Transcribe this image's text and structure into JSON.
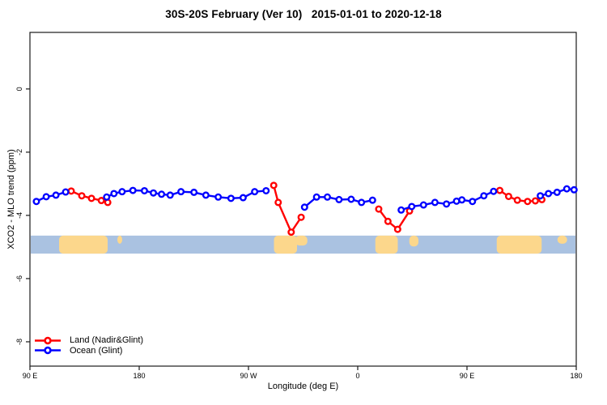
{
  "window": {
    "title": "30S-20S February (Ver 10)   2015-01-01 to 2020-12-18"
  },
  "chart_data": {
    "type": "line",
    "title": "30S-20S February (Ver 10)   2015-01-01 to 2020-12-18",
    "xlabel": "Longitude (deg E)",
    "ylabel": "XCO2 - MLO trend (ppm)",
    "x_domain": [
      90,
      540
    ],
    "y_domain": [
      -8.77,
      1.79
    ],
    "grid": false,
    "frame": "full-box",
    "axis_color": "#1a1a1a",
    "x_ticks": [
      {
        "value": 90,
        "label": "90 E"
      },
      {
        "value": 180,
        "label": "180"
      },
      {
        "value": 270,
        "label": "90 W"
      },
      {
        "value": 360,
        "label": "0"
      },
      {
        "value": 450,
        "label": "90 E"
      },
      {
        "value": 540,
        "label": "180"
      }
    ],
    "y_ticks": [
      {
        "value": 0,
        "label": "0"
      },
      {
        "value": -2,
        "label": "-2"
      },
      {
        "value": -4,
        "label": "-4"
      },
      {
        "value": -6,
        "label": "-6"
      },
      {
        "value": -8,
        "label": "-8"
      }
    ],
    "legend_position": "bottom-left",
    "series": [
      {
        "name": "Land (Nadir&Glint)",
        "color": "#ff0000",
        "marker": "open-circle",
        "segments": [
          [
            [
              124.0,
              -3.23
            ],
            [
              132.7,
              -3.38
            ],
            [
              140.7,
              -3.46
            ],
            [
              148.8,
              -3.53
            ],
            [
              154.1,
              -3.59
            ]
          ],
          [
            [
              290.8,
              -3.05
            ],
            [
              294.5,
              -3.59
            ],
            [
              305.2,
              -4.53
            ],
            [
              313.4,
              -4.06
            ]
          ],
          [
            [
              377.3,
              -3.8
            ],
            [
              384.9,
              -4.19
            ],
            [
              392.9,
              -4.44
            ],
            [
              402.7,
              -3.86
            ]
          ],
          [
            [
              477.0,
              -3.21
            ],
            [
              484.3,
              -3.4
            ],
            [
              491.5,
              -3.52
            ],
            [
              499.9,
              -3.56
            ],
            [
              506.3,
              -3.54
            ],
            [
              511.7,
              -3.5
            ]
          ]
        ]
      },
      {
        "name": "Ocean (Glint)",
        "color": "#0000ff",
        "marker": "open-circle",
        "segments": [
          [
            [
              95.3,
              -3.56
            ],
            [
              103.4,
              -3.41
            ],
            [
              111.4,
              -3.36
            ],
            [
              119.4,
              -3.26
            ]
          ],
          [
            [
              153.2,
              -3.42
            ],
            [
              159.2,
              -3.31
            ],
            [
              165.9,
              -3.25
            ],
            [
              174.8,
              -3.21
            ],
            [
              184.3,
              -3.22
            ],
            [
              191.7,
              -3.29
            ],
            [
              198.4,
              -3.33
            ],
            [
              205.5,
              -3.36
            ],
            [
              214.4,
              -3.25
            ],
            [
              225.1,
              -3.27
            ],
            [
              234.9,
              -3.36
            ],
            [
              245.1,
              -3.42
            ],
            [
              255.6,
              -3.46
            ],
            [
              265.6,
              -3.44
            ],
            [
              275.1,
              -3.25
            ],
            [
              284.5,
              -3.22
            ]
          ],
          [
            [
              316.2,
              -3.74
            ],
            [
              326.1,
              -3.42
            ],
            [
              335.0,
              -3.42
            ],
            [
              344.6,
              -3.5
            ],
            [
              354.6,
              -3.49
            ],
            [
              363.1,
              -3.59
            ],
            [
              372.2,
              -3.52
            ]
          ],
          [
            [
              395.8,
              -3.83
            ],
            [
              404.5,
              -3.72
            ],
            [
              414.2,
              -3.67
            ],
            [
              423.6,
              -3.59
            ],
            [
              433.1,
              -3.64
            ],
            [
              441.4,
              -3.55
            ],
            [
              445.8,
              -3.51
            ],
            [
              454.5,
              -3.56
            ],
            [
              463.9,
              -3.38
            ],
            [
              471.9,
              -3.24
            ]
          ],
          [
            [
              510.4,
              -3.38
            ],
            [
              517.1,
              -3.31
            ],
            [
              524.2,
              -3.27
            ],
            [
              532.2,
              -3.16
            ],
            [
              538.2,
              -3.19
            ]
          ]
        ]
      }
    ],
    "map_band": {
      "description": "latitude-strip world map 30S-20S",
      "y_top": -4.64,
      "y_bottom": -5.21,
      "ocean_color": "#aac2e1",
      "land_color": "#fcd78c",
      "land_regions": [
        {
          "name": "australia",
          "lon_start": 114.0,
          "lon_end": 154.0,
          "height_frac": 1.0
        },
        {
          "name": "new-caledonia",
          "lon_start": 162.0,
          "lon_end": 166.0,
          "height_frac": 0.45
        },
        {
          "name": "south-america",
          "lon_start": 291.0,
          "lon_end": 310.0,
          "height_frac": 1.0
        },
        {
          "name": "south-america-east",
          "lon_start": 308.5,
          "lon_end": 318.5,
          "height_frac": 0.55
        },
        {
          "name": "africa",
          "lon_start": 374.5,
          "lon_end": 393.0,
          "height_frac": 1.0
        },
        {
          "name": "madagascar",
          "lon_start": 402.5,
          "lon_end": 410.0,
          "height_frac": 0.6
        },
        {
          "name": "australia",
          "lon_start": 474.5,
          "lon_end": 511.5,
          "height_frac": 1.0
        },
        {
          "name": "new-caledonia",
          "lon_start": 524.5,
          "lon_end": 532.5,
          "height_frac": 0.45
        }
      ]
    }
  }
}
